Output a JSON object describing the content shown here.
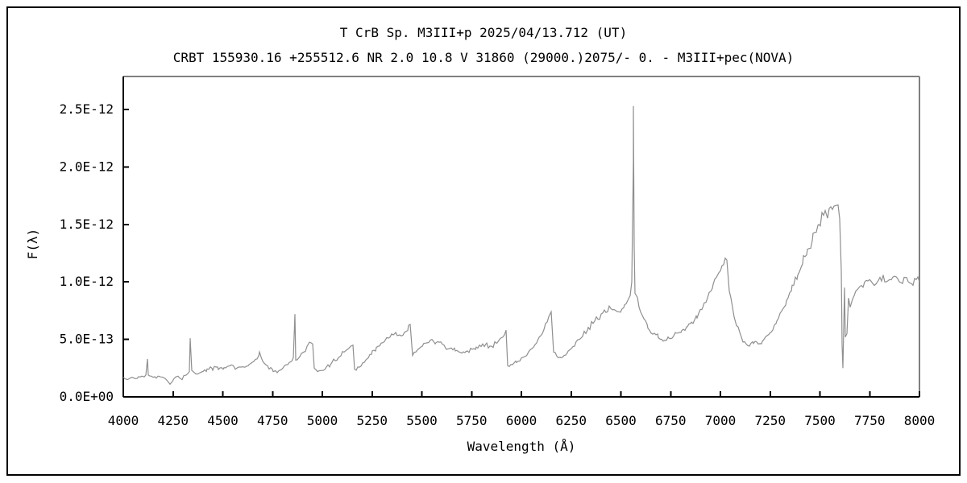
{
  "figure": {
    "kind": "stellar-spectrum-plot",
    "background": "#ffffff"
  },
  "colors": {
    "trace": "#8f8f8f",
    "axis": "#000000",
    "frame_top_right": "#808080",
    "text": "#000000",
    "outer_border": "#000000"
  },
  "chart_data": {
    "type": "line",
    "title_line1": "T CrB  Sp. M3III+p  2025/04/13.712 (UT)",
    "title_line2": "CRBT 155930.16 +255512.6 NR 2.0 10.8 V 31860 (29000.)2075/-  0. - M3III+pec(NOVA)",
    "xlabel": "Wavelength (Å)",
    "ylabel": "F(λ)",
    "xlim": [
      4000,
      8000
    ],
    "ylim": [
      0,
      2.78e-12
    ],
    "grid": false,
    "legend": null,
    "x_ticks": [
      4000,
      4250,
      4500,
      4750,
      5000,
      5250,
      5500,
      5750,
      6000,
      6250,
      6500,
      6750,
      7000,
      7250,
      7500,
      7750,
      8000
    ],
    "y_ticks": [
      {
        "flux": 0.0,
        "label": "0.0E+00"
      },
      {
        "flux": 0.5,
        "label": "5.0E-13"
      },
      {
        "flux": 1.0,
        "label": "1.0E-12"
      },
      {
        "flux": 1.5,
        "label": "1.5E-12"
      },
      {
        "flux": 2.0,
        "label": "2.0E-12"
      },
      {
        "flux": 2.5,
        "label": "2.5E-12"
      }
    ],
    "flux_unit_note": "flux values below are in units of 1e-12 (matching y-axis labels)",
    "noise": {
      "base": 0.012,
      "per_flux": 0.04,
      "seed": 20250413
    },
    "series": [
      {
        "name": "T CrB spectrum",
        "points": [
          [
            4000,
            0.17
          ],
          [
            4020,
            0.15
          ],
          [
            4045,
            0.17
          ],
          [
            4070,
            0.16
          ],
          [
            4095,
            0.18
          ],
          [
            4112,
            0.19
          ],
          [
            4120,
            0.33
          ],
          [
            4126,
            0.19
          ],
          [
            4150,
            0.17
          ],
          [
            4180,
            0.18
          ],
          [
            4210,
            0.16
          ],
          [
            4235,
            0.11
          ],
          [
            4255,
            0.16
          ],
          [
            4275,
            0.18
          ],
          [
            4295,
            0.15
          ],
          [
            4315,
            0.19
          ],
          [
            4330,
            0.22
          ],
          [
            4336,
            0.51
          ],
          [
            4343,
            0.23
          ],
          [
            4365,
            0.2
          ],
          [
            4395,
            0.22
          ],
          [
            4430,
            0.24
          ],
          [
            4465,
            0.26
          ],
          [
            4500,
            0.24
          ],
          [
            4535,
            0.27
          ],
          [
            4570,
            0.25
          ],
          [
            4605,
            0.26
          ],
          [
            4640,
            0.29
          ],
          [
            4672,
            0.33
          ],
          [
            4686,
            0.39
          ],
          [
            4700,
            0.31
          ],
          [
            4725,
            0.27
          ],
          [
            4755,
            0.22
          ],
          [
            4775,
            0.21
          ],
          [
            4800,
            0.25
          ],
          [
            4825,
            0.28
          ],
          [
            4845,
            0.31
          ],
          [
            4855,
            0.34
          ],
          [
            4861,
            0.72
          ],
          [
            4868,
            0.32
          ],
          [
            4885,
            0.35
          ],
          [
            4905,
            0.39
          ],
          [
            4925,
            0.44
          ],
          [
            4945,
            0.47
          ],
          [
            4952,
            0.46
          ],
          [
            4958,
            0.25
          ],
          [
            4975,
            0.22
          ],
          [
            4995,
            0.23
          ],
          [
            5020,
            0.26
          ],
          [
            5050,
            0.3
          ],
          [
            5080,
            0.34
          ],
          [
            5110,
            0.39
          ],
          [
            5140,
            0.44
          ],
          [
            5152,
            0.45
          ],
          [
            5160,
            0.24
          ],
          [
            5180,
            0.26
          ],
          [
            5210,
            0.3
          ],
          [
            5245,
            0.37
          ],
          [
            5280,
            0.44
          ],
          [
            5310,
            0.48
          ],
          [
            5340,
            0.52
          ],
          [
            5370,
            0.56
          ],
          [
            5395,
            0.53
          ],
          [
            5420,
            0.57
          ],
          [
            5442,
            0.63
          ],
          [
            5452,
            0.36
          ],
          [
            5470,
            0.39
          ],
          [
            5500,
            0.44
          ],
          [
            5525,
            0.47
          ],
          [
            5550,
            0.5
          ],
          [
            5580,
            0.48
          ],
          [
            5610,
            0.45
          ],
          [
            5640,
            0.42
          ],
          [
            5670,
            0.4
          ],
          [
            5700,
            0.38
          ],
          [
            5730,
            0.4
          ],
          [
            5760,
            0.42
          ],
          [
            5790,
            0.45
          ],
          [
            5820,
            0.46
          ],
          [
            5850,
            0.44
          ],
          [
            5880,
            0.47
          ],
          [
            5905,
            0.52
          ],
          [
            5922,
            0.58
          ],
          [
            5932,
            0.27
          ],
          [
            5955,
            0.28
          ],
          [
            5985,
            0.31
          ],
          [
            6015,
            0.35
          ],
          [
            6045,
            0.41
          ],
          [
            6075,
            0.47
          ],
          [
            6105,
            0.55
          ],
          [
            6130,
            0.65
          ],
          [
            6148,
            0.74
          ],
          [
            6160,
            0.39
          ],
          [
            6185,
            0.34
          ],
          [
            6215,
            0.36
          ],
          [
            6250,
            0.42
          ],
          [
            6290,
            0.5
          ],
          [
            6330,
            0.58
          ],
          [
            6370,
            0.66
          ],
          [
            6410,
            0.73
          ],
          [
            6440,
            0.79
          ],
          [
            6465,
            0.76
          ],
          [
            6490,
            0.74
          ],
          [
            6520,
            0.8
          ],
          [
            6545,
            0.88
          ],
          [
            6556,
            1.0
          ],
          [
            6561,
            2.05
          ],
          [
            6563,
            2.53
          ],
          [
            6567,
            1.3
          ],
          [
            6572,
            0.9
          ],
          [
            6590,
            0.78
          ],
          [
            6615,
            0.68
          ],
          [
            6645,
            0.58
          ],
          [
            6675,
            0.54
          ],
          [
            6705,
            0.5
          ],
          [
            6735,
            0.52
          ],
          [
            6765,
            0.53
          ],
          [
            6800,
            0.56
          ],
          [
            6835,
            0.61
          ],
          [
            6870,
            0.67
          ],
          [
            6905,
            0.76
          ],
          [
            6935,
            0.86
          ],
          [
            6965,
            0.98
          ],
          [
            6990,
            1.08
          ],
          [
            7015,
            1.15
          ],
          [
            7032,
            1.19
          ],
          [
            7045,
            0.92
          ],
          [
            7060,
            0.78
          ],
          [
            7080,
            0.62
          ],
          [
            7105,
            0.52
          ],
          [
            7130,
            0.46
          ],
          [
            7160,
            0.48
          ],
          [
            7190,
            0.46
          ],
          [
            7220,
            0.5
          ],
          [
            7250,
            0.56
          ],
          [
            7285,
            0.66
          ],
          [
            7320,
            0.78
          ],
          [
            7355,
            0.92
          ],
          [
            7390,
            1.06
          ],
          [
            7425,
            1.22
          ],
          [
            7460,
            1.36
          ],
          [
            7495,
            1.5
          ],
          [
            7520,
            1.58
          ],
          [
            7545,
            1.64
          ],
          [
            7570,
            1.66
          ],
          [
            7590,
            1.67
          ],
          [
            7600,
            1.55
          ],
          [
            7606,
            1.1
          ],
          [
            7612,
            0.45
          ],
          [
            7617,
            0.25
          ],
          [
            7623,
            0.95
          ],
          [
            7628,
            0.52
          ],
          [
            7634,
            0.55
          ],
          [
            7642,
            0.86
          ],
          [
            7652,
            0.78
          ],
          [
            7665,
            0.85
          ],
          [
            7680,
            0.92
          ],
          [
            7700,
            0.96
          ],
          [
            7725,
            1.0
          ],
          [
            7750,
            1.02
          ],
          [
            7775,
            0.97
          ],
          [
            7800,
            1.04
          ],
          [
            7825,
            1.0
          ],
          [
            7850,
            1.02
          ],
          [
            7875,
            1.05
          ],
          [
            7900,
            1.0
          ],
          [
            7925,
            1.04
          ],
          [
            7950,
            0.99
          ],
          [
            7975,
            1.03
          ],
          [
            8000,
            1.0
          ]
        ]
      }
    ]
  }
}
